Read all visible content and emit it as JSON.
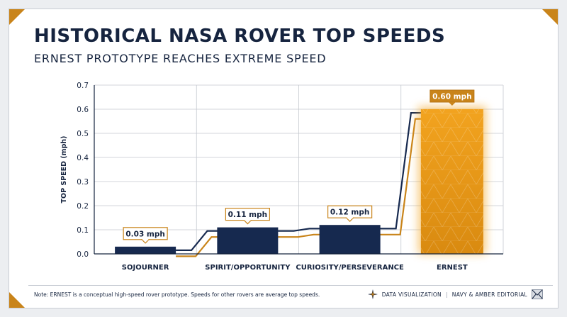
{
  "header": {
    "title": "HISTORICAL NASA ROVER TOP SPEEDS",
    "subtitle": "ERNEST PROTOTYPE REACHES EXTREME SPEED"
  },
  "chart_data": {
    "type": "bar",
    "title": "HISTORICAL NASA ROVER TOP SPEEDS",
    "subtitle": "ERNEST PROTOTYPE REACHES EXTREME SPEED",
    "categories": [
      "SOJOURNER",
      "SPIRIT/OPPORTUNITY",
      "CURIOSITY/PERSEVERANCE",
      "ERNEST"
    ],
    "values": [
      0.03,
      0.11,
      0.12,
      0.6
    ],
    "data_labels": [
      "0.03 mph",
      "0.11 mph",
      "0.12 mph",
      "0.60 mph"
    ],
    "highlight_index": 3,
    "xlabel": "",
    "ylabel": "TOP SPEED (mph)",
    "ylim": [
      0,
      0.7
    ],
    "yticks": [
      0.0,
      0.1,
      0.2,
      0.3,
      0.4,
      0.5,
      0.6,
      0.7
    ],
    "ytick_labels": [
      "0.0",
      "0.1",
      "0.2",
      "0.3",
      "0.4",
      "0.5",
      "0.6",
      "0.7"
    ],
    "grid": true,
    "colors": {
      "bar": "#16294f",
      "highlight": "#f0a020",
      "label_border": "#c9841a",
      "step_navy": "#16294f",
      "step_amber": "#c9841a"
    }
  },
  "footer": {
    "note": "Note: ERNEST is a conceptual high-speed rover prototype. Speeds for other rovers are average top speeds.",
    "brand_left": "DATA VISUALIZATION",
    "separator": "|",
    "brand_right": "NAVY & AMBER EDITORIAL",
    "icon_left": "compass-star-icon",
    "icon_right": "envelope-logo-icon"
  }
}
